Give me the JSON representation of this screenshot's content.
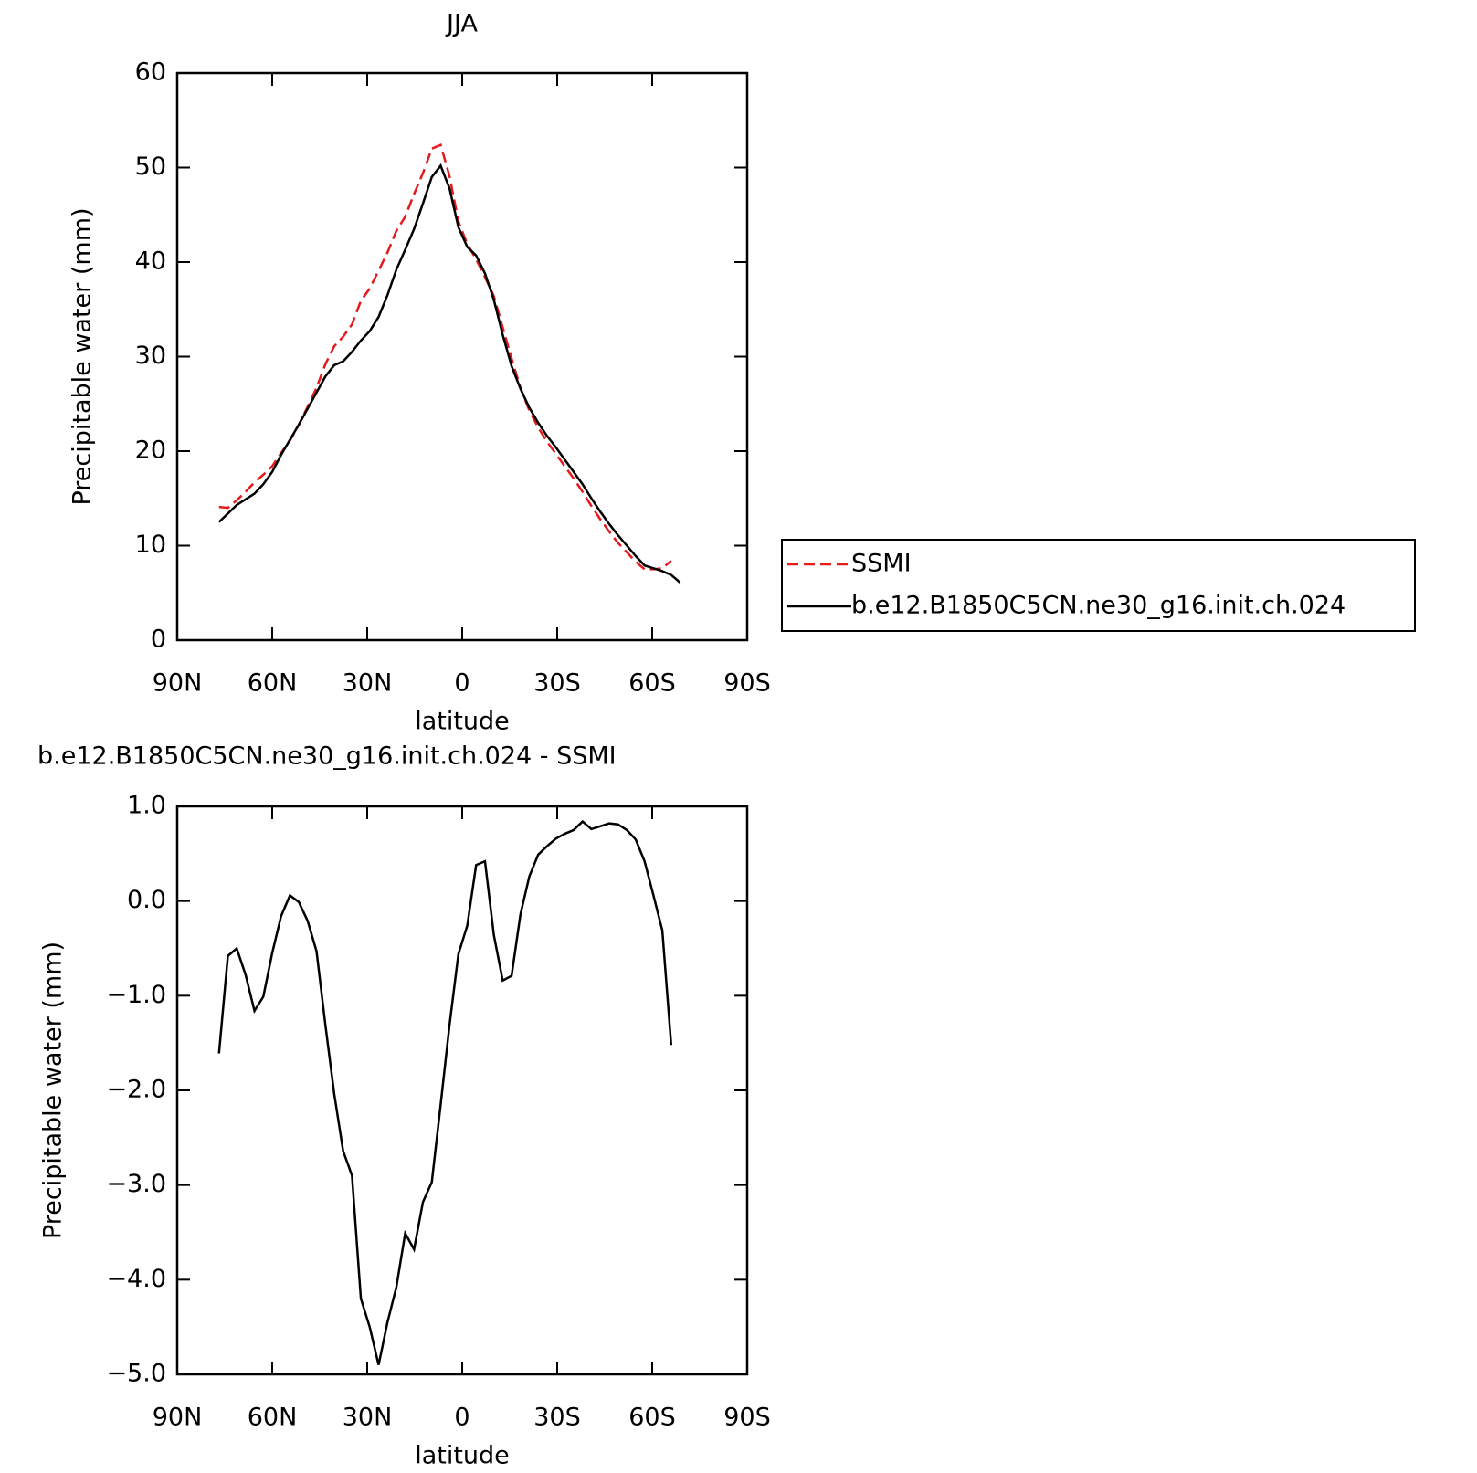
{
  "chart_data": [
    {
      "type": "line",
      "title": "JJA",
      "xlabel": "latitude",
      "ylabel": "Precipitable water (mm)",
      "xlim": [
        90,
        -90
      ],
      "xticks": [
        {
          "value": 90,
          "label": "90N"
        },
        {
          "value": 60,
          "label": "60N"
        },
        {
          "value": 30,
          "label": "30N"
        },
        0,
        {
          "value": -30,
          "label": "30S"
        },
        {
          "value": -60,
          "label": "60S"
        },
        {
          "value": -90,
          "label": "90S"
        }
      ],
      "ylim": [
        0,
        60
      ],
      "yticks": [
        0,
        10,
        20,
        30,
        40,
        50,
        60
      ],
      "legend": "right",
      "series": [
        {
          "name": "SSMI",
          "color": "#e41a1c",
          "style": "dashed",
          "x": [
            76.8,
            74.0,
            71.2,
            68.4,
            65.6,
            62.8,
            60.0,
            57.2,
            54.4,
            51.6,
            48.8,
            46.0,
            43.2,
            40.4,
            37.6,
            34.8,
            32.0,
            29.2,
            26.4,
            23.6,
            20.8,
            18.0,
            15.2,
            12.4,
            9.6,
            6.8,
            4.0,
            1.2,
            -1.6,
            -4.4,
            -7.2,
            -10.0,
            -12.8,
            -15.6,
            -18.4,
            -21.2,
            -24.0,
            -26.8,
            -29.6,
            -32.4,
            -35.2,
            -38.0,
            -40.8,
            -43.6,
            -46.4,
            -49.2,
            -52.0,
            -54.8,
            -57.6,
            -60.4,
            -63.2,
            -66.0
          ],
          "values": [
            14.1,
            14.0,
            14.8,
            15.7,
            16.7,
            17.5,
            18.4,
            19.8,
            21.1,
            22.8,
            24.7,
            26.7,
            29.2,
            31.1,
            32.1,
            33.4,
            35.9,
            37.2,
            39.1,
            41.0,
            43.3,
            44.8,
            47.2,
            49.4,
            52.0,
            52.4,
            49.1,
            44.3,
            41.9,
            40.3,
            38.4,
            36.4,
            33.1,
            29.8,
            26.7,
            24.3,
            22.5,
            21.0,
            19.7,
            18.4,
            17.1,
            15.7,
            14.2,
            12.8,
            11.5,
            10.3,
            9.3,
            8.3,
            7.5,
            7.5,
            7.6,
            8.4
          ]
        },
        {
          "name": "b.e12.B1850C5CN.ne30_g16.init.ch.024",
          "color": "#000000",
          "style": "solid",
          "x": [
            76.8,
            74.0,
            71.2,
            68.4,
            65.6,
            62.8,
            60.0,
            57.2,
            54.4,
            51.6,
            48.8,
            46.0,
            43.2,
            40.4,
            37.6,
            34.8,
            32.0,
            29.2,
            26.4,
            23.6,
            20.8,
            18.0,
            15.2,
            12.4,
            9.6,
            6.8,
            4.0,
            1.2,
            -1.6,
            -4.4,
            -7.2,
            -10.0,
            -12.8,
            -15.6,
            -18.4,
            -21.2,
            -24.0,
            -26.8,
            -29.6,
            -32.4,
            -35.2,
            -38.0,
            -40.8,
            -43.6,
            -46.4,
            -49.2,
            -52.0,
            -54.8,
            -57.6,
            -60.4,
            -63.2,
            -66.0,
            -68.8
          ],
          "values": [
            12.5,
            13.4,
            14.3,
            14.9,
            15.5,
            16.5,
            17.8,
            19.6,
            21.2,
            22.8,
            24.5,
            26.2,
            27.9,
            29.1,
            29.5,
            30.5,
            31.7,
            32.7,
            34.2,
            36.5,
            39.2,
            41.3,
            43.5,
            46.2,
            49.0,
            50.2,
            47.8,
            43.7,
            41.6,
            40.7,
            38.8,
            36.0,
            32.3,
            29.0,
            26.6,
            24.6,
            23.0,
            21.6,
            20.4,
            19.1,
            17.8,
            16.5,
            15.0,
            13.6,
            12.3,
            11.1,
            10.0,
            8.9,
            7.9,
            7.6,
            7.3,
            6.9,
            6.1
          ]
        }
      ]
    },
    {
      "type": "line",
      "title": "b.e12.B1850C5CN.ne30_g16.init.ch.024 - SSMI",
      "xlabel": "latitude",
      "ylabel": "Precipitable water (mm)",
      "xlim": [
        90,
        -90
      ],
      "xticks": [
        {
          "value": 90,
          "label": "90N"
        },
        {
          "value": 60,
          "label": "60N"
        },
        {
          "value": 30,
          "label": "30N"
        },
        0,
        {
          "value": -30,
          "label": "30S"
        },
        {
          "value": -60,
          "label": "60S"
        },
        {
          "value": -90,
          "label": "90S"
        }
      ],
      "ylim": [
        -5,
        1
      ],
      "yticks": [
        {
          "value": -5,
          "label": "−5.0"
        },
        {
          "value": -4,
          "label": "−4.0"
        },
        {
          "value": -3,
          "label": "−3.0"
        },
        {
          "value": -2,
          "label": "−2.0"
        },
        {
          "value": -1,
          "label": "−1.0"
        },
        {
          "value": 0,
          "label": "0.0"
        },
        {
          "value": 1,
          "label": "1.0"
        }
      ],
      "series": [
        {
          "color": "#000000",
          "style": "solid",
          "x": [
            76.8,
            74.0,
            71.2,
            68.4,
            65.6,
            62.8,
            60.0,
            57.2,
            54.4,
            51.6,
            48.8,
            46.0,
            43.2,
            40.4,
            37.6,
            34.8,
            32.0,
            29.2,
            26.4,
            23.6,
            20.8,
            18.0,
            15.2,
            12.4,
            9.6,
            6.8,
            4.0,
            1.2,
            -1.6,
            -4.4,
            -7.2,
            -10.0,
            -12.8,
            -15.6,
            -18.4,
            -21.2,
            -24.0,
            -26.8,
            -29.6,
            -32.4,
            -35.2,
            -38.0,
            -40.8,
            -43.6,
            -46.4,
            -49.2,
            -52.0,
            -54.8,
            -57.6,
            -60.4,
            -63.2,
            -66.0
          ],
          "values": [
            -1.61,
            -0.58,
            -0.5,
            -0.78,
            -1.16,
            -1.01,
            -0.55,
            -0.16,
            0.06,
            -0.01,
            -0.21,
            -0.53,
            -1.31,
            -2.04,
            -2.64,
            -2.9,
            -4.2,
            -4.5,
            -4.9,
            -4.45,
            -4.08,
            -3.51,
            -3.68,
            -3.18,
            -2.97,
            -2.15,
            -1.31,
            -0.56,
            -0.26,
            0.38,
            0.42,
            -0.36,
            -0.84,
            -0.79,
            -0.14,
            0.26,
            0.49,
            0.58,
            0.66,
            0.71,
            0.75,
            0.84,
            0.76,
            0.79,
            0.82,
            0.81,
            0.75,
            0.65,
            0.42,
            0.06,
            -0.31,
            -1.52
          ]
        }
      ]
    }
  ]
}
